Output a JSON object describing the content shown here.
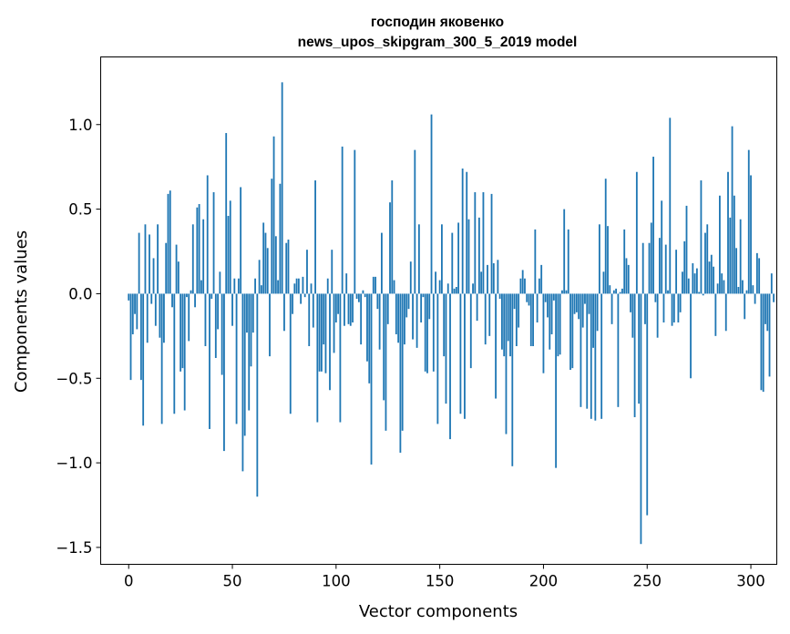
{
  "chart_data": {
    "type": "bar",
    "title_lines": [
      "господин яковенко",
      "news_upos_skipgram_300_5_2019 model"
    ],
    "xlabel": "Vector components",
    "ylabel": "Components values",
    "xlim": [
      -13.5,
      312.5
    ],
    "ylim": [
      -1.6,
      1.4
    ],
    "xticks": [
      0,
      50,
      100,
      150,
      200,
      250,
      300
    ],
    "xtick_labels": [
      "0",
      "50",
      "100",
      "150",
      "200",
      "250",
      "300"
    ],
    "yticks": [
      1.0,
      0.5,
      0.0,
      -0.5,
      -1.0,
      -1.5
    ],
    "ytick_labels": [
      "1.0",
      "0.5",
      "0.0",
      "−0.5",
      "−1.0",
      "−1.5"
    ],
    "bar_color": "#1f77b4",
    "values": [
      -0.04,
      -0.51,
      -0.24,
      -0.12,
      -0.21,
      0.36,
      -0.51,
      -0.78,
      0.41,
      -0.29,
      0.35,
      -0.06,
      0.21,
      -0.19,
      0.41,
      -0.26,
      -0.77,
      -0.29,
      0.3,
      0.59,
      0.61,
      -0.08,
      -0.71,
      0.29,
      0.19,
      -0.46,
      -0.44,
      -0.69,
      -0.02,
      -0.28,
      0.02,
      0.41,
      -0.08,
      0.51,
      0.53,
      0.08,
      0.44,
      -0.31,
      0.7,
      -0.8,
      -0.03,
      0.6,
      -0.38,
      -0.21,
      0.13,
      -0.48,
      -0.93,
      0.95,
      0.46,
      0.55,
      -0.19,
      0.09,
      -0.77,
      0.09,
      0.63,
      -1.05,
      -0.84,
      -0.23,
      -0.69,
      -0.43,
      -0.23,
      0.09,
      -1.2,
      0.2,
      0.05,
      0.42,
      0.36,
      0.27,
      -0.37,
      0.68,
      0.93,
      0.34,
      0.08,
      0.65,
      1.25,
      -0.22,
      0.3,
      0.32,
      -0.71,
      -0.12,
      0.06,
      0.09,
      0.09,
      -0.06,
      0.1,
      -0.02,
      0.26,
      -0.31,
      0.06,
      -0.2,
      0.67,
      -0.76,
      -0.46,
      -0.46,
      -0.3,
      -0.47,
      0.09,
      -0.57,
      0.26,
      -0.35,
      -0.17,
      -0.12,
      -0.76,
      0.87,
      -0.19,
      0.12,
      -0.18,
      -0.19,
      -0.17,
      0.85,
      -0.03,
      -0.05,
      -0.3,
      0.02,
      -0.02,
      -0.4,
      -0.53,
      -1.01,
      0.1,
      0.1,
      -0.09,
      -0.33,
      0.36,
      -0.63,
      -0.81,
      -0.18,
      0.54,
      0.67,
      0.08,
      -0.24,
      -0.29,
      -0.94,
      -0.81,
      -0.3,
      -0.14,
      -0.09,
      0.19,
      -0.27,
      0.85,
      -0.32,
      0.41,
      -0.17,
      -0.02,
      -0.46,
      -0.47,
      -0.15,
      1.06,
      -0.46,
      0.13,
      -0.77,
      0.08,
      0.41,
      -0.37,
      -0.65,
      0.06,
      -0.86,
      0.36,
      0.03,
      0.04,
      0.42,
      -0.71,
      0.74,
      -0.74,
      0.72,
      0.44,
      -0.44,
      0.06,
      0.6,
      -0.16,
      0.45,
      0.13,
      0.6,
      -0.3,
      0.17,
      -0.25,
      0.59,
      0.18,
      -0.62,
      0.2,
      -0.03,
      -0.33,
      -0.37,
      -0.83,
      -0.28,
      -0.37,
      -1.02,
      -0.09,
      -0.31,
      -0.2,
      0.09,
      0.14,
      0.09,
      -0.05,
      -0.07,
      -0.31,
      -0.31,
      0.38,
      -0.17,
      0.09,
      0.17,
      -0.47,
      -0.05,
      -0.14,
      -0.33,
      -0.24,
      -0.04,
      -1.03,
      -0.37,
      -0.36,
      0.02,
      0.5,
      0.02,
      0.38,
      -0.45,
      -0.44,
      -0.12,
      -0.11,
      -0.15,
      -0.67,
      -0.2,
      -0.06,
      -0.68,
      -0.12,
      -0.74,
      -0.32,
      -0.75,
      -0.22,
      0.41,
      -0.74,
      0.13,
      0.68,
      0.4,
      0.05,
      -0.18,
      0.02,
      0.03,
      -0.67,
      0.01,
      0.03,
      0.38,
      0.21,
      0.17,
      -0.11,
      -0.26,
      -0.73,
      0.72,
      -0.65,
      -1.48,
      0.3,
      -0.18,
      -1.31,
      0.3,
      0.42,
      0.81,
      -0.05,
      -0.26,
      0.33,
      0.55,
      -0.17,
      0.29,
      0.02,
      1.04,
      -0.19,
      -0.17,
      0.26,
      -0.17,
      -0.11,
      0.13,
      0.31,
      0.52,
      0.09,
      -0.5,
      0.18,
      0.12,
      0.15,
      0.01,
      0.67,
      -0.01,
      0.36,
      0.41,
      0.19,
      0.23,
      0.16,
      -0.25,
      0.06,
      0.58,
      0.12,
      0.08,
      -0.22,
      0.72,
      0.45,
      0.99,
      0.58,
      0.27,
      0.04,
      0.44,
      0.08,
      -0.15,
      0.02,
      0.85,
      0.7,
      0.05,
      -0.06,
      0.24,
      0.21,
      -0.57,
      -0.58,
      -0.18,
      -0.22,
      -0.49,
      0.12,
      -0.05
    ]
  }
}
